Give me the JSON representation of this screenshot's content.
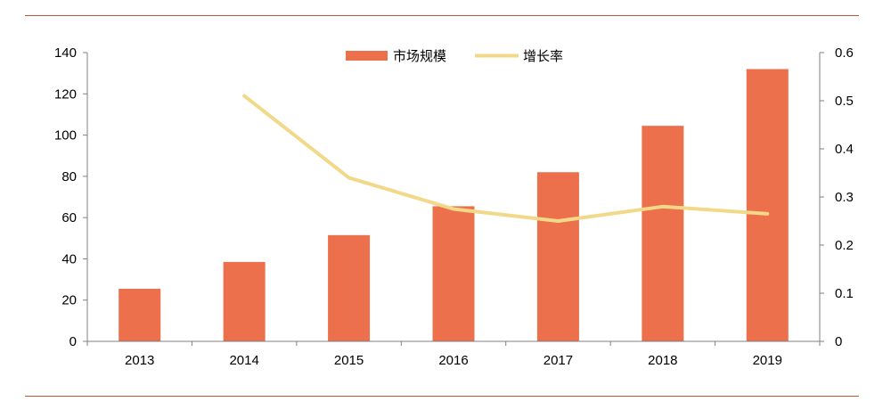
{
  "chart_data": {
    "type": "bar",
    "categories": [
      "2013",
      "2014",
      "2015",
      "2016",
      "2017",
      "2018",
      "2019"
    ],
    "series": [
      {
        "name": "市场规模",
        "type": "bar",
        "axis": "left",
        "color": "#ec704b",
        "values": [
          25.5,
          38.5,
          51.5,
          65.5,
          82,
          104.5,
          132
        ]
      },
      {
        "name": "增长率",
        "type": "line",
        "axis": "right",
        "color": "#f2d98a",
        "values": [
          null,
          0.51,
          0.34,
          0.275,
          0.25,
          0.28,
          0.265
        ]
      }
    ],
    "y_left": {
      "min": 0,
      "max": 140,
      "ticks": [
        0,
        20,
        40,
        60,
        80,
        100,
        120,
        140
      ]
    },
    "y_right": {
      "min": 0,
      "max": 0.6,
      "ticks": [
        "0",
        "0.1",
        "0.2",
        "0.3",
        "0.4",
        "0.5",
        "0.6"
      ]
    },
    "legend_position": "top-center",
    "grid": false,
    "title": "",
    "xlabel": "",
    "ylabel": ""
  },
  "colors": {
    "rule": "#c0553a",
    "axis": "#808080"
  }
}
